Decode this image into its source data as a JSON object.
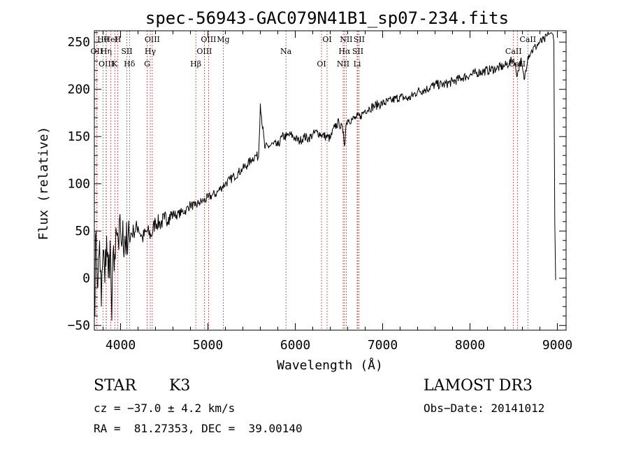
{
  "chart_data": {
    "type": "line",
    "title": "spec-56943-GAC079N41B1_sp07-234.fits",
    "xlabel": "Wavelength (Å)",
    "ylabel": "Flux (relative)",
    "xlim": [
      3700,
      9100
    ],
    "ylim": [
      -55,
      262
    ],
    "xticks": [
      4000,
      5000,
      6000,
      7000,
      8000,
      9000
    ],
    "yticks": [
      -50,
      0,
      50,
      100,
      150,
      200,
      250
    ],
    "series": [
      {
        "name": "flux",
        "x": [
          3700,
          3720,
          3740,
          3760,
          3780,
          3800,
          3820,
          3840,
          3860,
          3880,
          3900,
          3920,
          3940,
          3960,
          3980,
          4000,
          4020,
          4050,
          4080,
          4100,
          4150,
          4200,
          4250,
          4300,
          4350,
          4400,
          4450,
          4500,
          4550,
          4600,
          4650,
          4700,
          4750,
          4800,
          4850,
          4900,
          4950,
          5000,
          5050,
          5100,
          5150,
          5200,
          5250,
          5300,
          5350,
          5400,
          5450,
          5500,
          5550,
          5580,
          5600,
          5650,
          5700,
          5750,
          5800,
          5850,
          5900,
          5950,
          6000,
          6050,
          6100,
          6150,
          6200,
          6250,
          6300,
          6350,
          6400,
          6450,
          6500,
          6550,
          6563,
          6580,
          6600,
          6650,
          6700,
          6750,
          6800,
          6850,
          6900,
          6950,
          7000,
          7100,
          7200,
          7300,
          7400,
          7500,
          7600,
          7700,
          7800,
          7900,
          8000,
          8100,
          8200,
          8300,
          8400,
          8450,
          8500,
          8542,
          8580,
          8620,
          8662,
          8700,
          8750,
          8800,
          8850,
          8900,
          8930,
          8950,
          8960,
          8970,
          8980
        ],
        "values": [
          -40,
          50,
          -10,
          40,
          -30,
          30,
          -5,
          45,
          0,
          40,
          -45,
          35,
          20,
          45,
          30,
          50,
          40,
          45,
          25,
          45,
          50,
          55,
          42,
          50,
          45,
          60,
          58,
          62,
          65,
          68,
          67,
          70,
          72,
          78,
          76,
          80,
          82,
          85,
          88,
          90,
          96,
          100,
          104,
          108,
          112,
          116,
          120,
          126,
          130,
          128,
          185,
          138,
          140,
          142,
          140,
          150,
          150,
          152,
          148,
          145,
          150,
          148,
          152,
          155,
          152,
          150,
          148,
          160,
          165,
          155,
          140,
          162,
          168,
          168,
          170,
          172,
          178,
          180,
          182,
          184,
          185,
          188,
          192,
          190,
          198,
          200,
          205,
          205,
          208,
          212,
          215,
          218,
          220,
          222,
          225,
          228,
          232,
          215,
          232,
          210,
          235,
          240,
          245,
          250,
          252,
          258,
          260,
          258,
          250,
          60,
          0
        ]
      }
    ],
    "line_markers": [
      {
        "label": "Hθ",
        "x": 3798
      },
      {
        "label": "OII",
        "x": 3727
      },
      {
        "label": "OIII",
        "x": 3836
      },
      {
        "label": "HeI",
        "x": 3889
      },
      {
        "label": "Hη",
        "x": 3835
      },
      {
        "label": "K",
        "x": 3934
      },
      {
        "label": "H",
        "x": 3968
      },
      {
        "label": "SII",
        "x": 4072
      },
      {
        "label": "Hδ",
        "x": 4102
      },
      {
        "label": "OIII",
        "x": 4363
      },
      {
        "label": "Hγ",
        "x": 4340
      },
      {
        "label": "G",
        "x": 4304
      },
      {
        "label": "OIII",
        "x": 5007
      },
      {
        "label": "OIII",
        "x": 4959
      },
      {
        "label": "Hβ",
        "x": 4861
      },
      {
        "label": "Mg",
        "x": 5175
      },
      {
        "label": "Na",
        "x": 5893
      },
      {
        "label": "OI",
        "x": 6300
      },
      {
        "label": "OI",
        "x": 6364
      },
      {
        "label": "Hα",
        "x": 6563
      },
      {
        "label": "NII",
        "x": 6548
      },
      {
        "label": "NII",
        "x": 6583
      },
      {
        "label": "SII",
        "x": 6716
      },
      {
        "label": "Li",
        "x": 6708
      },
      {
        "label": "SII",
        "x": 6731
      },
      {
        "label": "CaII",
        "x": 8498
      },
      {
        "label": "CaII",
        "x": 8542
      },
      {
        "label": "CaII",
        "x": 8662
      }
    ]
  },
  "info": {
    "class_label": "STAR",
    "subclass": "K3",
    "survey": "LAMOST DR3",
    "cz": "cz = −37.0 ± 4.2 km/s",
    "obs_date": "Obs−Date: 20141012",
    "radec": "RA =  81.27353, DEC =  39.00140"
  }
}
